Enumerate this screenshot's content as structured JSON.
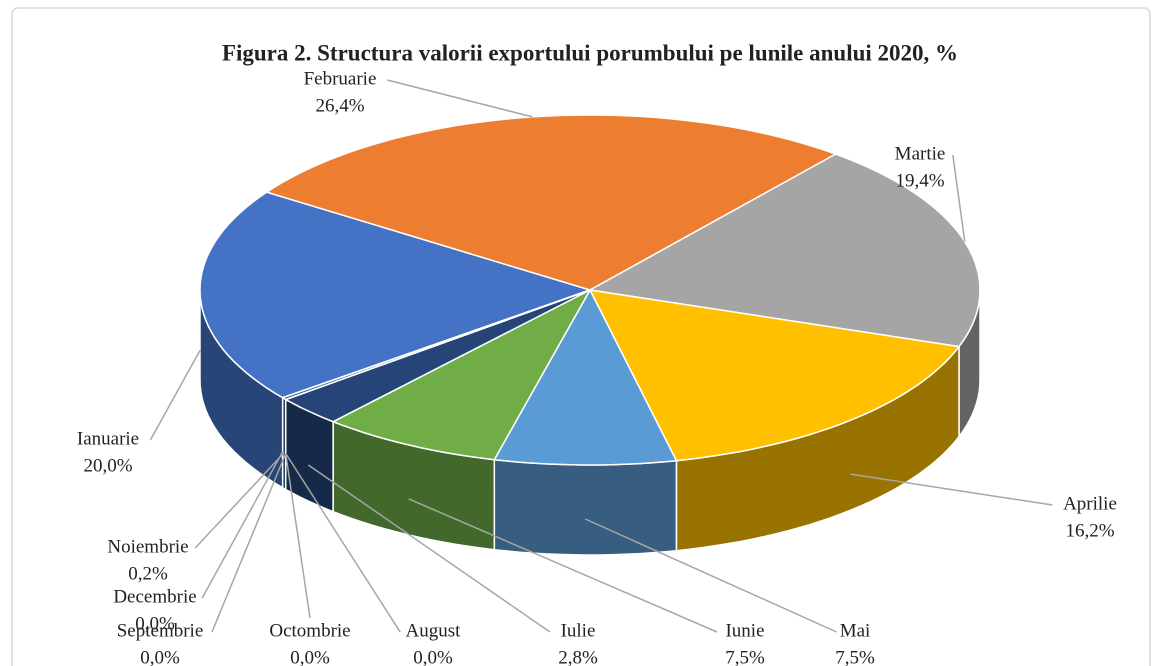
{
  "chart_data": {
    "type": "pie",
    "title": "Figura 2. Structura valorii exportului porumbului pe lunile anului 2020, %",
    "categories": [
      "Ianuarie",
      "Februarie",
      "Martie",
      "Aprilie",
      "Mai",
      "Iunie",
      "Iulie",
      "August",
      "Septembrie",
      "Octombrie",
      "Noiembrie",
      "Decembrie"
    ],
    "values": [
      20.0,
      26.4,
      19.4,
      16.2,
      7.5,
      7.5,
      2.8,
      0.0,
      0.0,
      0.0,
      0.2,
      0.0
    ],
    "value_labels": [
      "20,0%",
      "26,4%",
      "19,4%",
      "16,2%",
      "7,5%",
      "7,5%",
      "2,8%",
      "0,0%",
      "0,0%",
      "0,0%",
      "0,2%",
      "0,0%"
    ],
    "colors": [
      "#4472c4",
      "#ed7d31",
      "#a5a5a5",
      "#ffc000",
      "#5b9bd5",
      "#70ad47",
      "#264478",
      "#9e480e",
      "#636363",
      "#997300",
      "#255e91",
      "#43682b"
    ]
  }
}
